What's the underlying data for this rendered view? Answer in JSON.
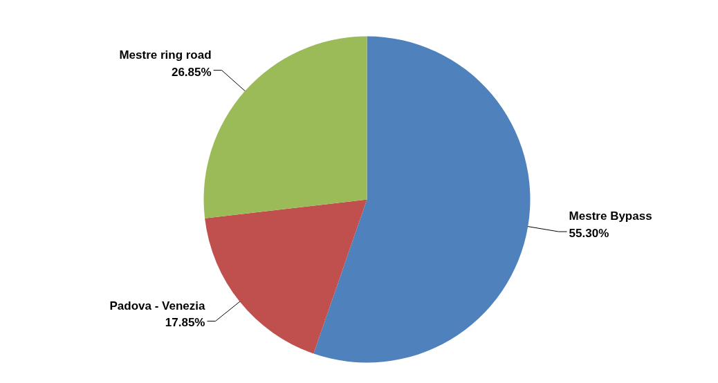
{
  "chart_data": {
    "type": "pie",
    "categories": [
      "Mestre Bypass",
      "Padova - Venezia",
      "Mestre ring road"
    ],
    "values": [
      55.3,
      17.85,
      26.85
    ],
    "colors": [
      "#4f81bd",
      "#c0504d",
      "#9bbb59"
    ],
    "value_labels": [
      "55.30%",
      "17.85%",
      "26.85%"
    ]
  }
}
